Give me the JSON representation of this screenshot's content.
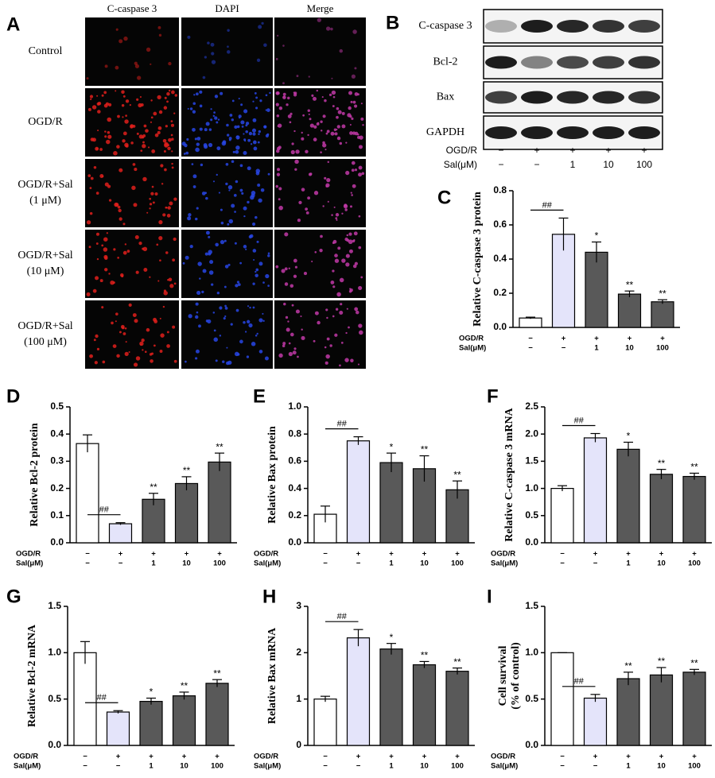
{
  "panel_a": {
    "letter": "A",
    "columns": [
      "C-caspase 3",
      "DAPI",
      "Merge"
    ],
    "rows": [
      [
        "Control"
      ],
      [
        "OGD/R"
      ],
      [
        "OGD/R+Sal",
        "(1 μM)"
      ],
      [
        "OGD/R+Sal",
        "(10 μM)"
      ],
      [
        "OGD/R+Sal",
        "(100 μM)"
      ]
    ]
  },
  "panel_b": {
    "letter": "B",
    "proteins": [
      "C-caspase 3",
      "Bcl-2",
      "Bax",
      "GAPDH"
    ],
    "x_label_rows": [
      {
        "name": "OGD/R",
        "labels": [
          "−",
          "+",
          "+",
          "+",
          "+"
        ]
      },
      {
        "name": "Sal(μM)",
        "labels": [
          "−",
          "−",
          "1",
          "10",
          "100"
        ]
      }
    ]
  },
  "chart_data": [
    {
      "type": "bar",
      "panel": "C",
      "ylabel": [
        "Relative  C-caspase 3 protein"
      ],
      "x_label_rows": [
        {
          "name": "OGD/R",
          "labels": [
            "−",
            "+",
            "+",
            "+",
            "+"
          ]
        },
        {
          "name": "Sal(μM)",
          "labels": [
            "−",
            "−",
            "1",
            "10",
            "100"
          ]
        }
      ],
      "values": [
        0.055,
        0.545,
        0.44,
        0.195,
        0.15
      ],
      "errors": [
        0.005,
        0.095,
        0.06,
        0.018,
        0.012
      ],
      "colors": [
        "#ffffff",
        "#e4e4fa",
        "#595959",
        "#595959",
        "#595959"
      ],
      "value_annotations": [
        null,
        "##",
        "*",
        "**",
        "**"
      ],
      "ylim": [
        0,
        0.8
      ],
      "yticks": [
        {
          "value": 0,
          "label": "0.0"
        },
        0.2,
        0.4,
        0.6,
        0.8
      ]
    },
    {
      "type": "bar",
      "panel": "D",
      "ylabel": [
        "Relative  Bcl-2 protein"
      ],
      "x_label_rows": [
        {
          "name": "OGD/R",
          "labels": [
            "−",
            "+",
            "+",
            "+",
            "+"
          ]
        },
        {
          "name": "Sal(μM)",
          "labels": [
            "−",
            "−",
            "1",
            "10",
            "100"
          ]
        }
      ],
      "values": [
        0.365,
        0.07,
        0.16,
        0.218,
        0.297
      ],
      "errors": [
        0.032,
        0.004,
        0.022,
        0.025,
        0.033
      ],
      "colors": [
        "#ffffff",
        "#e4e4fa",
        "#595959",
        "#595959",
        "#595959"
      ],
      "value_annotations": [
        null,
        "##",
        "**",
        "**",
        "**"
      ],
      "ylim": [
        0,
        0.5
      ],
      "yticks": [
        {
          "value": 0,
          "label": "0.0"
        },
        0.1,
        0.2,
        0.3,
        0.4,
        0.5
      ]
    },
    {
      "type": "bar",
      "panel": "E",
      "ylabel": [
        "Relative  Bax protein"
      ],
      "x_label_rows": [
        {
          "name": "OGD/R",
          "labels": [
            "−",
            "+",
            "+",
            "+",
            "+"
          ]
        },
        {
          "name": "Sal(μM)",
          "labels": [
            "−",
            "−",
            "1",
            "10",
            "100"
          ]
        }
      ],
      "values": [
        0.21,
        0.75,
        0.59,
        0.545,
        0.39
      ],
      "errors": [
        0.06,
        0.03,
        0.07,
        0.095,
        0.065
      ],
      "colors": [
        "#ffffff",
        "#e4e4fa",
        "#595959",
        "#595959",
        "#595959"
      ],
      "value_annotations": [
        null,
        "##",
        "*",
        "**",
        "**"
      ],
      "ylim": [
        0,
        1
      ],
      "yticks": [
        {
          "value": 0,
          "label": "0.0"
        },
        0.2,
        0.4,
        0.6,
        0.8,
        {
          "value": 1,
          "label": "1.0"
        }
      ]
    },
    {
      "type": "bar",
      "panel": "F",
      "ylabel": [
        "Relative  C-caspase 3 mRNA"
      ],
      "x_label_rows": [
        {
          "name": "OGD/R",
          "labels": [
            "−",
            "+",
            "+",
            "+",
            "+"
          ]
        },
        {
          "name": "Sal(μM)",
          "labels": [
            "−",
            "−",
            "1",
            "10",
            "100"
          ]
        }
      ],
      "values": [
        1.0,
        1.93,
        1.72,
        1.26,
        1.22
      ],
      "errors": [
        0.05,
        0.08,
        0.13,
        0.09,
        0.06
      ],
      "colors": [
        "#ffffff",
        "#e4e4fa",
        "#595959",
        "#595959",
        "#595959"
      ],
      "value_annotations": [
        null,
        "##",
        "*",
        "**",
        "**"
      ],
      "ylim": [
        0,
        2.5
      ],
      "yticks": [
        {
          "value": 0,
          "label": "0.0"
        },
        0.5,
        {
          "value": 1,
          "label": "1.0"
        },
        1.5,
        {
          "value": 2,
          "label": "2.0"
        },
        2.5
      ]
    },
    {
      "type": "bar",
      "panel": "G",
      "ylabel": [
        "Relative  Bcl-2 mRNA"
      ],
      "x_label_rows": [
        {
          "name": "OGD/R",
          "labels": [
            "−",
            "+",
            "+",
            "+",
            "+"
          ]
        },
        {
          "name": "Sal(μM)",
          "labels": [
            "−",
            "−",
            "1",
            "10",
            "100"
          ]
        }
      ],
      "values": [
        1.0,
        0.36,
        0.475,
        0.535,
        0.67
      ],
      "errors": [
        0.12,
        0.015,
        0.035,
        0.04,
        0.04
      ],
      "colors": [
        "#ffffff",
        "#e4e4fa",
        "#595959",
        "#595959",
        "#595959"
      ],
      "value_annotations": [
        null,
        "##",
        "*",
        "**",
        "**"
      ],
      "ylim": [
        0,
        1.5
      ],
      "yticks": [
        {
          "value": 0,
          "label": "0.0"
        },
        0.5,
        {
          "value": 1,
          "label": "1.0"
        },
        1.5
      ]
    },
    {
      "type": "bar",
      "panel": "H",
      "ylabel": [
        "Relative  Bax mRNA"
      ],
      "x_label_rows": [
        {
          "name": "OGD/R",
          "labels": [
            "−",
            "+",
            "+",
            "+",
            "+"
          ]
        },
        {
          "name": "Sal(μM)",
          "labels": [
            "−",
            "−",
            "1",
            "10",
            "100"
          ]
        }
      ],
      "values": [
        1.0,
        2.32,
        2.08,
        1.74,
        1.6
      ],
      "errors": [
        0.06,
        0.18,
        0.12,
        0.07,
        0.07
      ],
      "colors": [
        "#ffffff",
        "#e4e4fa",
        "#595959",
        "#595959",
        "#595959"
      ],
      "value_annotations": [
        null,
        "##",
        "*",
        "**",
        "**"
      ],
      "ylim": [
        0,
        3
      ],
      "yticks": [
        0,
        1,
        2,
        3
      ]
    },
    {
      "type": "bar",
      "panel": "I",
      "ylabel": [
        "Cell survival",
        "(% of control)"
      ],
      "x_label_rows": [
        {
          "name": "OGD/R",
          "labels": [
            "−",
            "+",
            "+",
            "+",
            "+"
          ]
        },
        {
          "name": "Sal(μM)",
          "labels": [
            "−",
            "−",
            "1",
            "10",
            "100"
          ]
        }
      ],
      "values": [
        1.0,
        0.51,
        0.72,
        0.76,
        0.79
      ],
      "errors": [
        0,
        0.04,
        0.07,
        0.08,
        0.03
      ],
      "colors": [
        "#ffffff",
        "#e4e4fa",
        "#595959",
        "#595959",
        "#595959"
      ],
      "value_annotations": [
        null,
        "##",
        "**",
        "**",
        "**"
      ],
      "ylim": [
        0,
        1.5
      ],
      "yticks": [
        {
          "value": 0,
          "label": "0.0"
        },
        0.5,
        {
          "value": 1,
          "label": "1.0"
        },
        1.5
      ]
    }
  ]
}
